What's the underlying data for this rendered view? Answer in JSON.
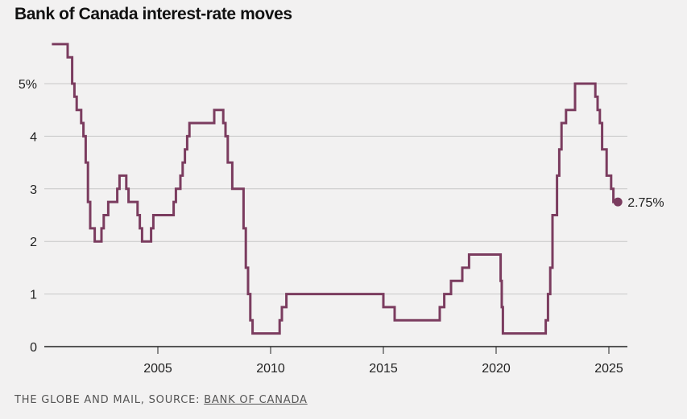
{
  "title": "Bank of Canada interest-rate moves",
  "credit": {
    "prefix": "THE GLOBE AND MAIL, SOURCE: ",
    "source": "BANK OF CANADA"
  },
  "colors": {
    "line": "#7b3c5f",
    "grid": "#c8c8c8",
    "axis": "#222222",
    "background": "#f2f1f1"
  },
  "chart_data": {
    "type": "line",
    "title": "Bank of Canada interest-rate moves",
    "xlabel": "",
    "ylabel": "",
    "xlim": [
      2000.0,
      2025.8
    ],
    "ylim": [
      0,
      5.75
    ],
    "grid": true,
    "legend": "none",
    "y_ticks": [
      {
        "value": 0,
        "label": "0"
      },
      {
        "value": 1,
        "label": "1"
      },
      {
        "value": 2,
        "label": "2"
      },
      {
        "value": 3,
        "label": "3"
      },
      {
        "value": 4,
        "label": "4"
      },
      {
        "value": 5,
        "label": "5%"
      }
    ],
    "x_ticks": [
      {
        "value": 2005,
        "label": "2005"
      },
      {
        "value": 2010,
        "label": "2010"
      },
      {
        "value": 2015,
        "label": "2015"
      },
      {
        "value": 2020,
        "label": "2020"
      },
      {
        "value": 2025,
        "label": "2025"
      }
    ],
    "series": [
      {
        "step": true,
        "x": [
          2000.3,
          2001.0,
          2001.2,
          2001.3,
          2001.4,
          2001.6,
          2001.7,
          2001.8,
          2001.9,
          2002.0,
          2002.2,
          2002.5,
          2002.6,
          2002.8,
          2003.2,
          2003.3,
          2003.6,
          2003.7,
          2004.1,
          2004.2,
          2004.3,
          2004.7,
          2004.8,
          2005.7,
          2005.8,
          2006.0,
          2006.1,
          2006.2,
          2006.3,
          2006.4,
          2007.5,
          2007.9,
          2008.0,
          2008.1,
          2008.3,
          2008.8,
          2008.9,
          2009.0,
          2009.1,
          2009.2,
          2009.3,
          2010.4,
          2010.5,
          2010.7,
          2015.0,
          2015.5,
          2017.5,
          2017.7,
          2018.0,
          2018.5,
          2018.8,
          2020.2,
          2020.25,
          2020.3,
          2022.2,
          2022.3,
          2022.4,
          2022.5,
          2022.7,
          2022.8,
          2022.9,
          2023.1,
          2023.5,
          2024.4,
          2024.5,
          2024.6,
          2024.7,
          2024.9,
          2025.1,
          2025.2
        ],
        "y": [
          5.75,
          5.5,
          5.0,
          4.75,
          4.5,
          4.25,
          4.0,
          3.5,
          2.75,
          2.25,
          2.0,
          2.25,
          2.5,
          2.75,
          3.0,
          3.25,
          3.0,
          2.75,
          2.5,
          2.25,
          2.0,
          2.25,
          2.5,
          2.75,
          3.0,
          3.25,
          3.5,
          3.75,
          4.0,
          4.25,
          4.5,
          4.25,
          4.0,
          3.5,
          3.0,
          2.25,
          1.5,
          1.0,
          0.5,
          0.25,
          0.25,
          0.5,
          0.75,
          1.0,
          0.75,
          0.5,
          0.75,
          1.0,
          1.25,
          1.5,
          1.75,
          1.25,
          0.75,
          0.25,
          0.5,
          1.0,
          1.5,
          2.5,
          3.25,
          3.75,
          4.25,
          4.5,
          5.0,
          4.75,
          4.5,
          4.25,
          3.75,
          3.25,
          3.0,
          2.75
        ]
      }
    ],
    "annotations": [
      {
        "x": 2025.4,
        "y": 2.75,
        "label": "2.75%"
      }
    ]
  }
}
